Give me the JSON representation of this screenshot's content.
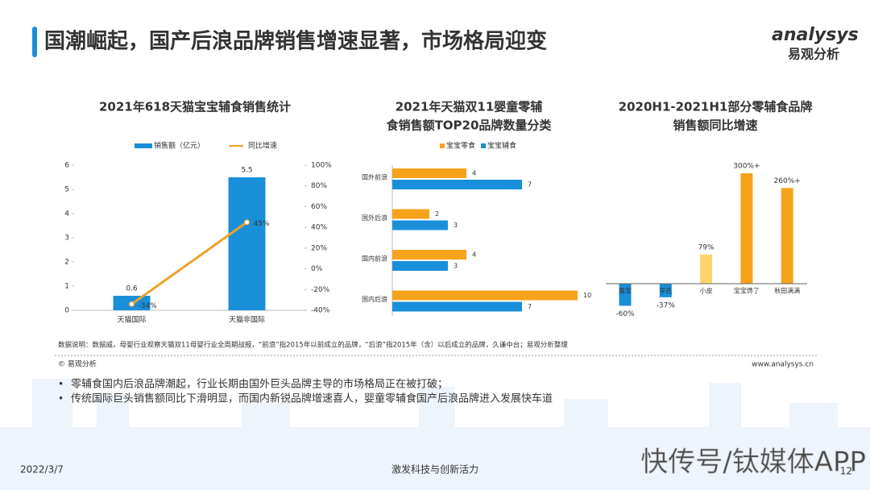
{
  "header": {
    "title": "国潮崛起，国产后浪品牌销售增速显著，市场格局迎变",
    "logo_brand": "analysys",
    "logo_name": "易观分析"
  },
  "chart_data": [
    {
      "type": "combo",
      "title": "2021年618天猫宝宝辅食销售统计",
      "categories": [
        "天猫国际",
        "天猫非国际"
      ],
      "series": [
        {
          "name": "销售额（亿元）",
          "type": "bar",
          "color": "#1a8fd9",
          "values": [
            0.6,
            5.5
          ],
          "value_labels": [
            "0.6",
            "5.5"
          ]
        },
        {
          "name": "同比增速",
          "type": "line",
          "axis": "y2",
          "color": "#f0a028",
          "values": [
            -34,
            45
          ],
          "value_labels": [
            "-34%",
            "45%"
          ]
        }
      ],
      "ylim": [
        0,
        6
      ],
      "yticks": [
        0,
        1,
        2,
        3,
        4,
        5,
        6
      ],
      "y2lim": [
        -40,
        100
      ],
      "y2ticks": [
        {
          "value": -40,
          "label": "-40%"
        },
        {
          "value": -20,
          "label": "-20%"
        },
        {
          "value": 0,
          "label": "0%"
        },
        {
          "value": 20,
          "label": "20%"
        },
        {
          "value": 40,
          "label": "40%"
        },
        {
          "value": 60,
          "label": "60%"
        },
        {
          "value": 80,
          "label": "80%"
        },
        {
          "value": 100,
          "label": "100%"
        }
      ],
      "legend": "top"
    },
    {
      "type": "barh",
      "title": [
        "2021年天猫双11婴童零辅",
        "食销售额TOP20品牌数量分类"
      ],
      "categories": [
        "国外前浪",
        "国外后浪",
        "国内前浪",
        "国内后浪"
      ],
      "series": [
        {
          "name": "宝宝零食",
          "color": "#f7a21b",
          "values": [
            4,
            2,
            4,
            10
          ]
        },
        {
          "name": "宝宝辅食",
          "color": "#1a8fd9",
          "values": [
            7,
            3,
            3,
            7
          ]
        }
      ],
      "legend": "top"
    },
    {
      "type": "bar",
      "title": [
        "2020H1-2021H1部分零辅食品牌",
        "销售额同比增速"
      ],
      "categories": [
        "嘉宝",
        "亨氏",
        "小皮",
        "宝宝馋了",
        "秋田满满"
      ],
      "values": [
        -60,
        -37,
        79,
        300,
        260
      ],
      "value_labels": [
        "-60%",
        "-37%",
        "79%",
        "300%+",
        "260%+"
      ],
      "colors": [
        "#1a8fd9",
        "#1a8fd9",
        "#fbd46d",
        "#f7a21b",
        "#f7a21b"
      ]
    }
  ],
  "note": "数据说明：数据威，母婴行业观察天猫双11母婴行业全周期战报，“前浪”指2015年以前成立的品牌，“后浪”指2015年（含）以后成立的品牌，久谦中台；易观分析整理",
  "source": "© 易观分析",
  "website": "www.analysys.cn",
  "bullets": [
    "零辅食国内后浪品牌潮起，行业长期由国外巨头品牌主导的市场格局正在被打破；",
    "传统国际巨头销售额同比下滑明显，而国内新锐品牌增速喜人，婴童零辅食国产后浪品牌进入发展快车道"
  ],
  "footer": {
    "date": "2022/3/7",
    "slogan": "激发科技与创新活力",
    "page": "12",
    "watermark": "快传号/钛媒体APP"
  }
}
